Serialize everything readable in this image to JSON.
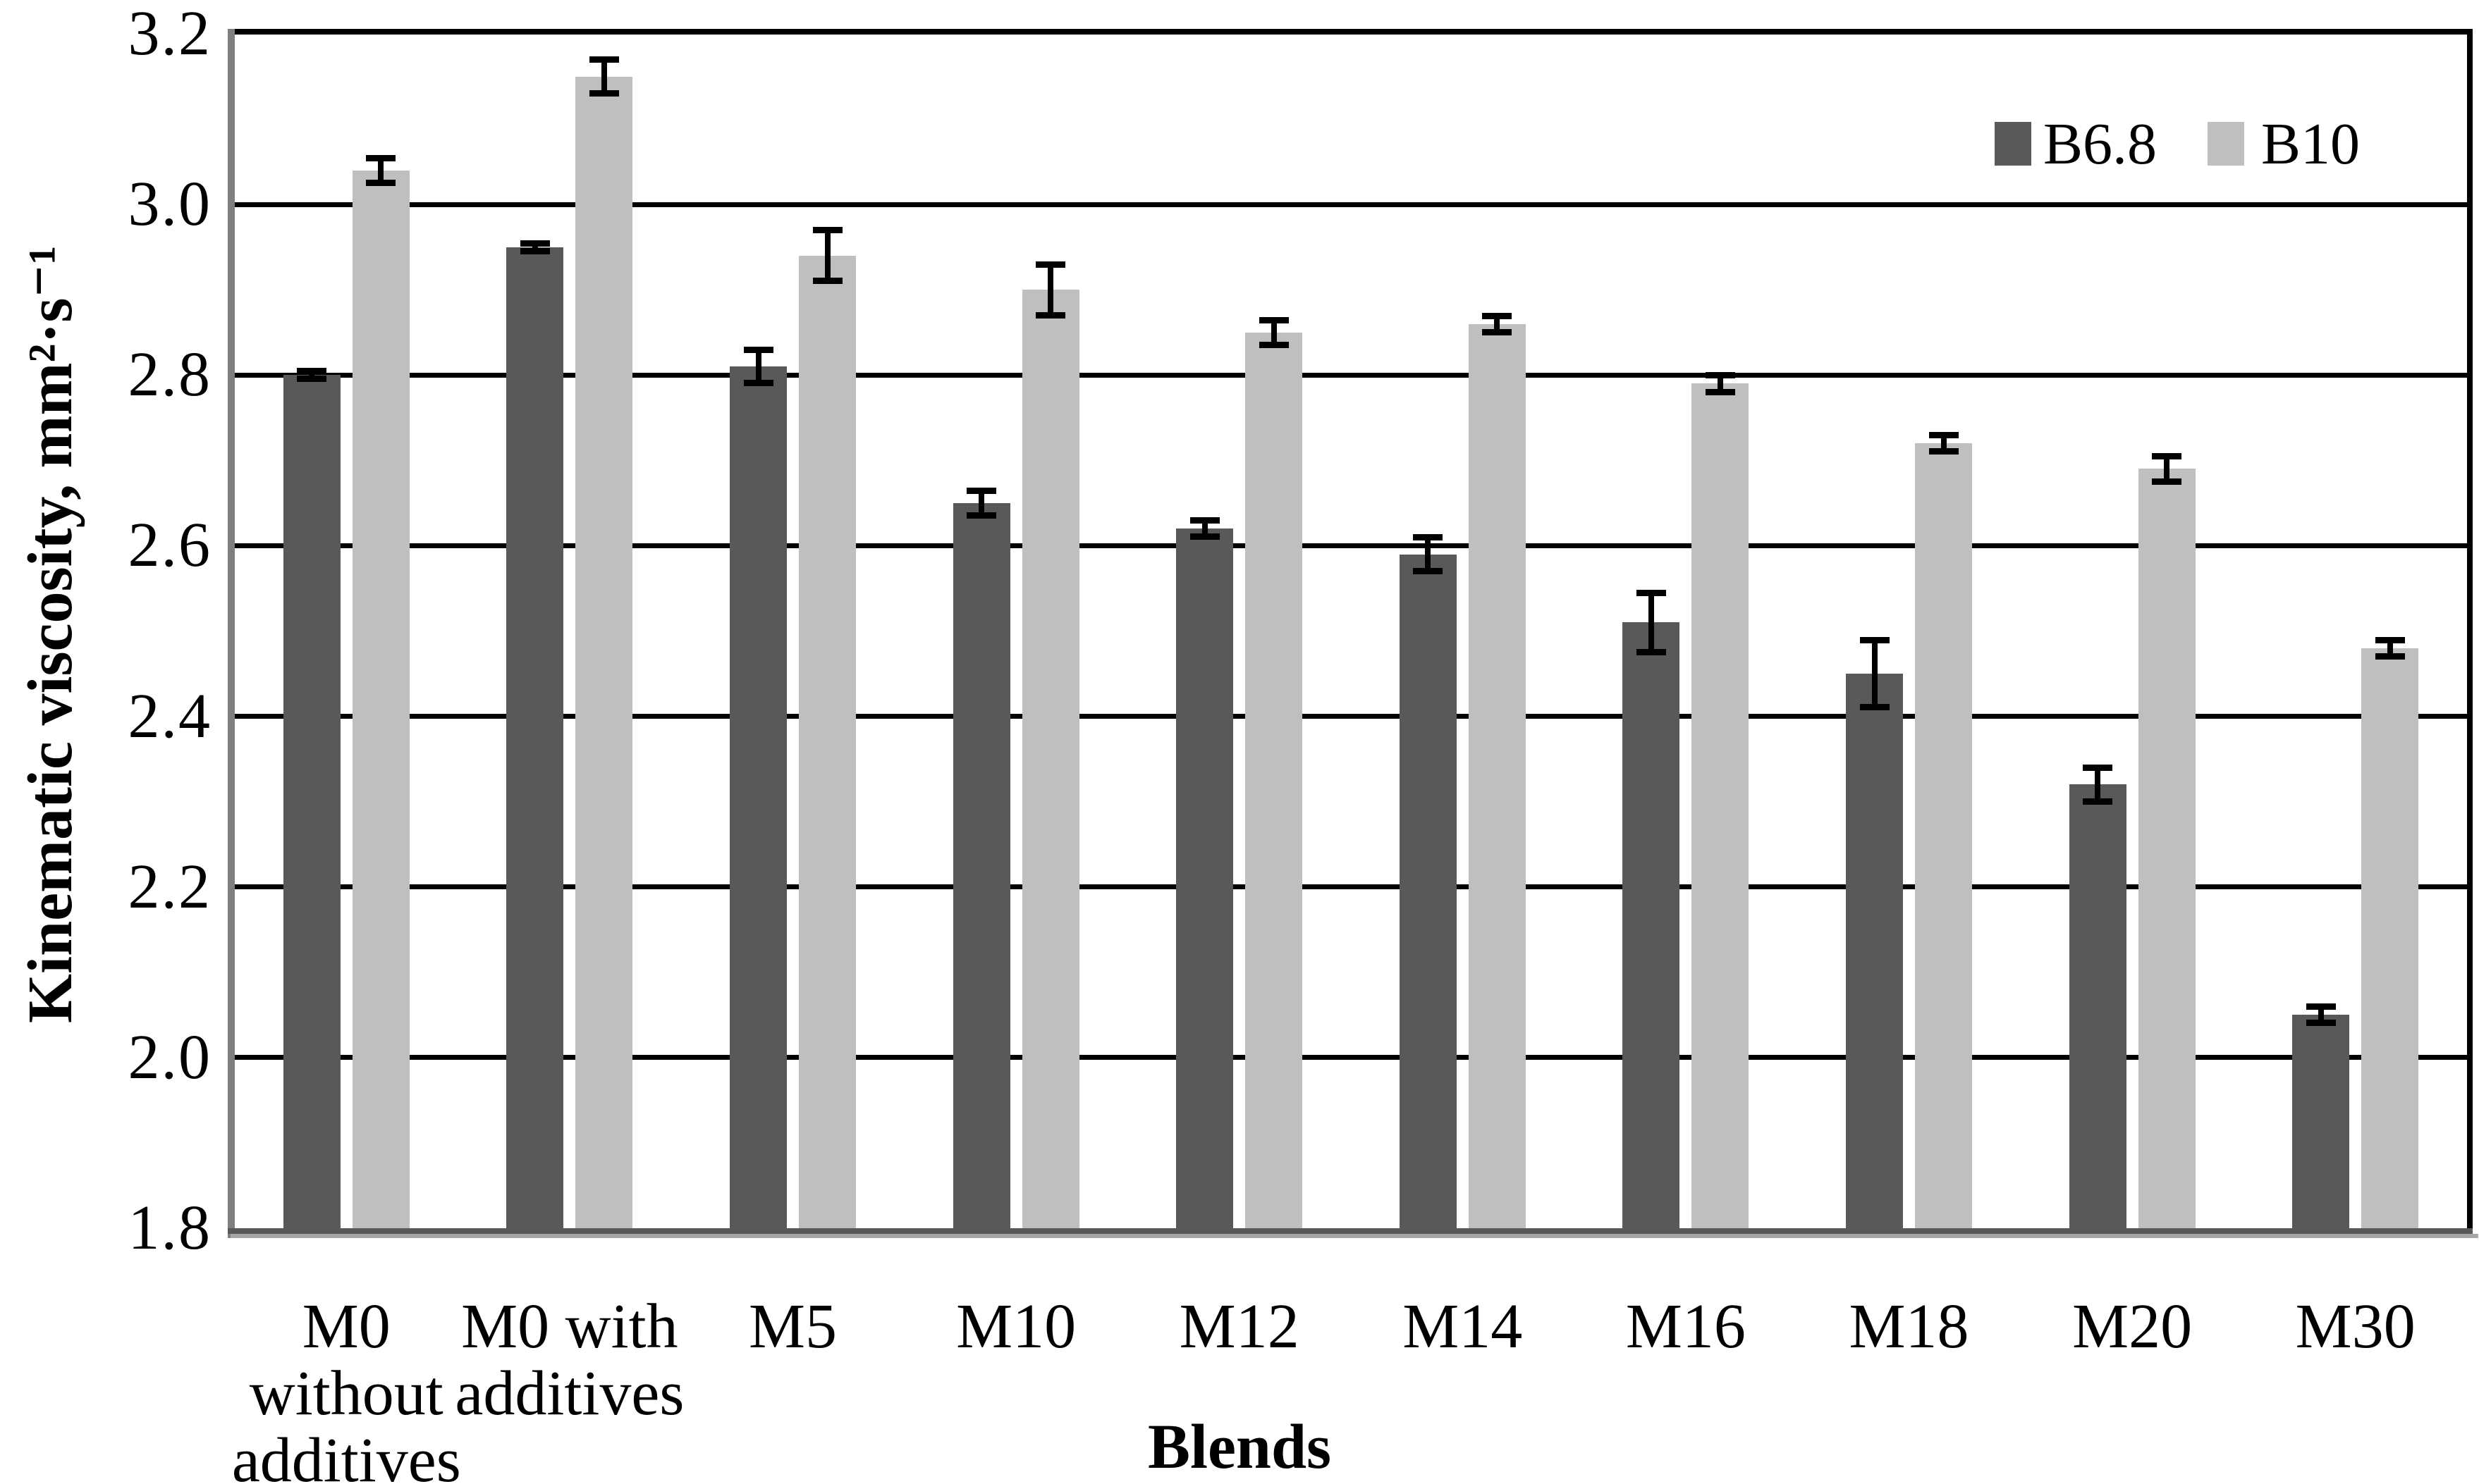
{
  "chart_data": {
    "type": "bar",
    "title": "",
    "xlabel": "Blends",
    "ylabel": "Kinematic viscosity, mm²·s⁻¹",
    "ylim": [
      1.8,
      3.2
    ],
    "ytick_step": 0.2,
    "y_ticks": [
      "3.2",
      "3.0",
      "2.8",
      "2.6",
      "2.4",
      "2.2",
      "2.0",
      "1.8"
    ],
    "grid": true,
    "legend_position": "top-right",
    "categories": [
      "M0 without additives",
      "M0 with additives",
      "M5",
      "M10",
      "M12",
      "M14",
      "M16",
      "M18",
      "M20",
      "M30"
    ],
    "category_label_lines": [
      [
        "M0",
        "without",
        "additives"
      ],
      [
        "M0 with",
        "additives"
      ],
      [
        "M5"
      ],
      [
        "M10"
      ],
      [
        "M12"
      ],
      [
        "M14"
      ],
      [
        "M16"
      ],
      [
        "M18"
      ],
      [
        "M20"
      ],
      [
        "M30"
      ]
    ],
    "series": [
      {
        "name": "B6.8",
        "color": "#595959",
        "values": [
          2.8,
          2.95,
          2.81,
          2.65,
          2.62,
          2.59,
          2.51,
          2.45,
          2.32,
          2.05
        ],
        "errors": [
          0.005,
          0.005,
          0.02,
          0.015,
          0.01,
          0.02,
          0.035,
          0.04,
          0.02,
          0.01
        ]
      },
      {
        "name": "B10",
        "color": "#bfbfbf",
        "values": [
          3.04,
          3.15,
          2.94,
          2.9,
          2.85,
          2.86,
          2.79,
          2.72,
          2.69,
          2.48
        ],
        "errors": [
          0.015,
          0.02,
          0.03,
          0.03,
          0.015,
          0.01,
          0.01,
          0.01,
          0.015,
          0.01
        ]
      }
    ]
  },
  "colors": {
    "gridline": "#000000",
    "plot_border_top": "#000000",
    "plot_border_right": "#000000",
    "axis_left": "#7f7f7f",
    "axis_bottom": "#595959",
    "axis_bottom_shadow": "#a6a6a6",
    "error_bar": "#000000",
    "background": "#ffffff"
  }
}
